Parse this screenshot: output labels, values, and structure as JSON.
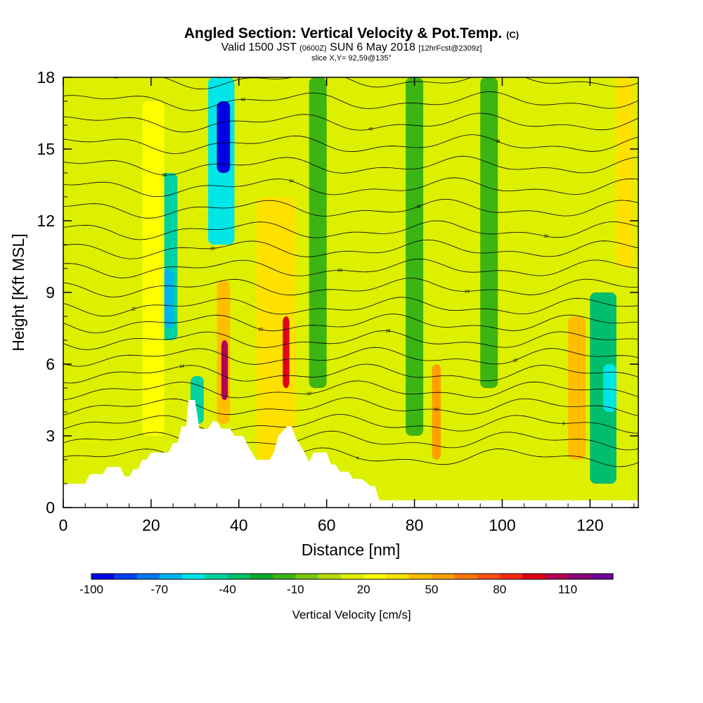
{
  "title": {
    "main": "Angled Section: Vertical Velocity & Pot.Temp.",
    "main_tag": "(C)",
    "valid_prefix": "Valid 1500 JST",
    "valid_zulu": "(0600Z)",
    "valid_date": "SUN 6 May 2018",
    "forecast": "[12hrFcst@2309z]",
    "slice": "slice X,Y= 92,59@135°"
  },
  "chart_data": {
    "type": "heatmap",
    "xlabel": "Distance [nm]",
    "ylabel": "Height [Kft MSL]",
    "xlim": [
      0,
      131
    ],
    "ylim": [
      0,
      18
    ],
    "x_ticks": [
      0,
      20,
      40,
      60,
      80,
      100,
      120
    ],
    "y_ticks": [
      0,
      3,
      6,
      9,
      12,
      15,
      18
    ],
    "colorbar": {
      "label": "Vertical Velocity [cm/s]",
      "min": -100,
      "max": 120,
      "step": 10,
      "tick_labels": [
        -100,
        -70,
        -40,
        -10,
        20,
        50,
        80,
        110
      ],
      "colors": [
        "#0000e6",
        "#0040f0",
        "#0078f0",
        "#00b4f0",
        "#00e6e6",
        "#00d2a0",
        "#00be6e",
        "#00aa28",
        "#3cb414",
        "#78c814",
        "#b4dc0a",
        "#dcf000",
        "#ffff00",
        "#ffe100",
        "#ffbe00",
        "#ffa000",
        "#ff7800",
        "#ff5014",
        "#ff2814",
        "#e10014",
        "#b40050",
        "#8c0078",
        "#6e0096"
      ]
    },
    "velocity_cells": [
      {
        "x": [
          22,
          26
        ],
        "y": [
          7,
          14
        ],
        "w": -50
      },
      {
        "x": [
          23,
          25
        ],
        "y": [
          7.5,
          10
        ],
        "w": -65
      },
      {
        "x": [
          33,
          39
        ],
        "y": [
          11,
          18
        ],
        "w": -60
      },
      {
        "x": [
          35,
          38
        ],
        "y": [
          14,
          17
        ],
        "w": -95
      },
      {
        "x": [
          29,
          32
        ],
        "y": [
          3.5,
          5.5
        ],
        "w": -45
      },
      {
        "x": [
          35,
          38
        ],
        "y": [
          3.5,
          9.5
        ],
        "w": 40
      },
      {
        "x": [
          36,
          37.5
        ],
        "y": [
          4.5,
          7
        ],
        "w": 100
      },
      {
        "x": [
          44,
          53
        ],
        "y": [
          2,
          13
        ],
        "w": 35
      },
      {
        "x": [
          50,
          51.5
        ],
        "y": [
          5,
          8
        ],
        "w": 90
      },
      {
        "x": [
          18,
          23
        ],
        "y": [
          3,
          17
        ],
        "w": 25
      },
      {
        "x": [
          56,
          60
        ],
        "y": [
          5,
          18
        ],
        "w": -15
      },
      {
        "x": [
          78,
          82
        ],
        "y": [
          3,
          18
        ],
        "w": -20
      },
      {
        "x": [
          84,
          86
        ],
        "y": [
          2,
          6
        ],
        "w": 50
      },
      {
        "x": [
          95,
          99
        ],
        "y": [
          5,
          18
        ],
        "w": -15
      },
      {
        "x": [
          115,
          119
        ],
        "y": [
          2,
          8
        ],
        "w": 40
      },
      {
        "x": [
          120,
          126
        ],
        "y": [
          1,
          9
        ],
        "w": -35
      },
      {
        "x": [
          123,
          126
        ],
        "y": [
          4,
          6
        ],
        "w": -60
      },
      {
        "x": [
          126,
          130
        ],
        "y": [
          10,
          18
        ],
        "w": 30
      }
    ],
    "theta_levels": [
      {
        "label": "44",
        "base": 17.9
      },
      {
        "label": "42",
        "base": 17.0
      },
      {
        "label": "40",
        "base": 16.1
      },
      {
        "label": "38",
        "base": 15.2
      },
      {
        "label": "36",
        "base": 14.3
      },
      {
        "label": "34",
        "base": 13.4
      },
      {
        "label": "32",
        "base": 12.5
      },
      {
        "label": "30",
        "base": 11.6
      },
      {
        "label": "28",
        "base": 10.8
      },
      {
        "label": "26",
        "base": 10.0
      },
      {
        "label": "24",
        "base": 9.2
      },
      {
        "label": "22",
        "base": 8.4
      },
      {
        "label": "20",
        "base": 7.7
      },
      {
        "label": "18",
        "base": 7.0
      },
      {
        "label": "16",
        "base": 6.3
      },
      {
        "label": "14",
        "base": 5.6
      },
      {
        "label": "12",
        "base": 4.9
      },
      {
        "label": "10",
        "base": 4.2
      },
      {
        "label": "8",
        "base": 3.5
      },
      {
        "label": "6",
        "base": 2.8
      },
      {
        "label": "4",
        "base": 2.1
      }
    ],
    "terrain": [
      [
        0,
        1.0
      ],
      [
        5,
        1.0
      ],
      [
        6,
        1.4
      ],
      [
        9,
        1.4
      ],
      [
        10,
        1.7
      ],
      [
        13,
        1.7
      ],
      [
        14,
        1.3
      ],
      [
        15,
        1.3
      ],
      [
        16,
        1.6
      ],
      [
        17,
        1.6
      ],
      [
        18,
        2.0
      ],
      [
        19,
        2.0
      ],
      [
        20,
        2.3
      ],
      [
        24,
        2.3
      ],
      [
        25,
        2.7
      ],
      [
        26,
        2.7
      ],
      [
        27,
        3.4
      ],
      [
        28,
        3.4
      ],
      [
        28.5,
        4.5
      ],
      [
        30,
        4.5
      ],
      [
        31,
        3.3
      ],
      [
        33,
        3.3
      ],
      [
        34,
        3.6
      ],
      [
        35,
        3.6
      ],
      [
        36,
        3.3
      ],
      [
        38,
        3.3
      ],
      [
        39,
        3.0
      ],
      [
        41,
        3.0
      ],
      [
        42,
        2.6
      ],
      [
        43,
        2.3
      ],
      [
        44,
        2.0
      ],
      [
        47,
        2.0
      ],
      [
        48,
        2.3
      ],
      [
        49,
        3.0
      ],
      [
        51,
        3.4
      ],
      [
        52,
        3.4
      ],
      [
        53,
        2.9
      ],
      [
        54,
        2.6
      ],
      [
        55,
        2.3
      ],
      [
        56,
        1.9
      ],
      [
        57,
        2.3
      ],
      [
        60,
        2.3
      ],
      [
        61,
        1.8
      ],
      [
        62,
        1.8
      ],
      [
        63,
        1.5
      ],
      [
        65,
        1.5
      ],
      [
        66,
        1.2
      ],
      [
        68,
        1.2
      ],
      [
        70,
        0.9
      ],
      [
        71,
        0.9
      ],
      [
        72,
        0.3
      ],
      [
        131,
        0.3
      ]
    ]
  }
}
